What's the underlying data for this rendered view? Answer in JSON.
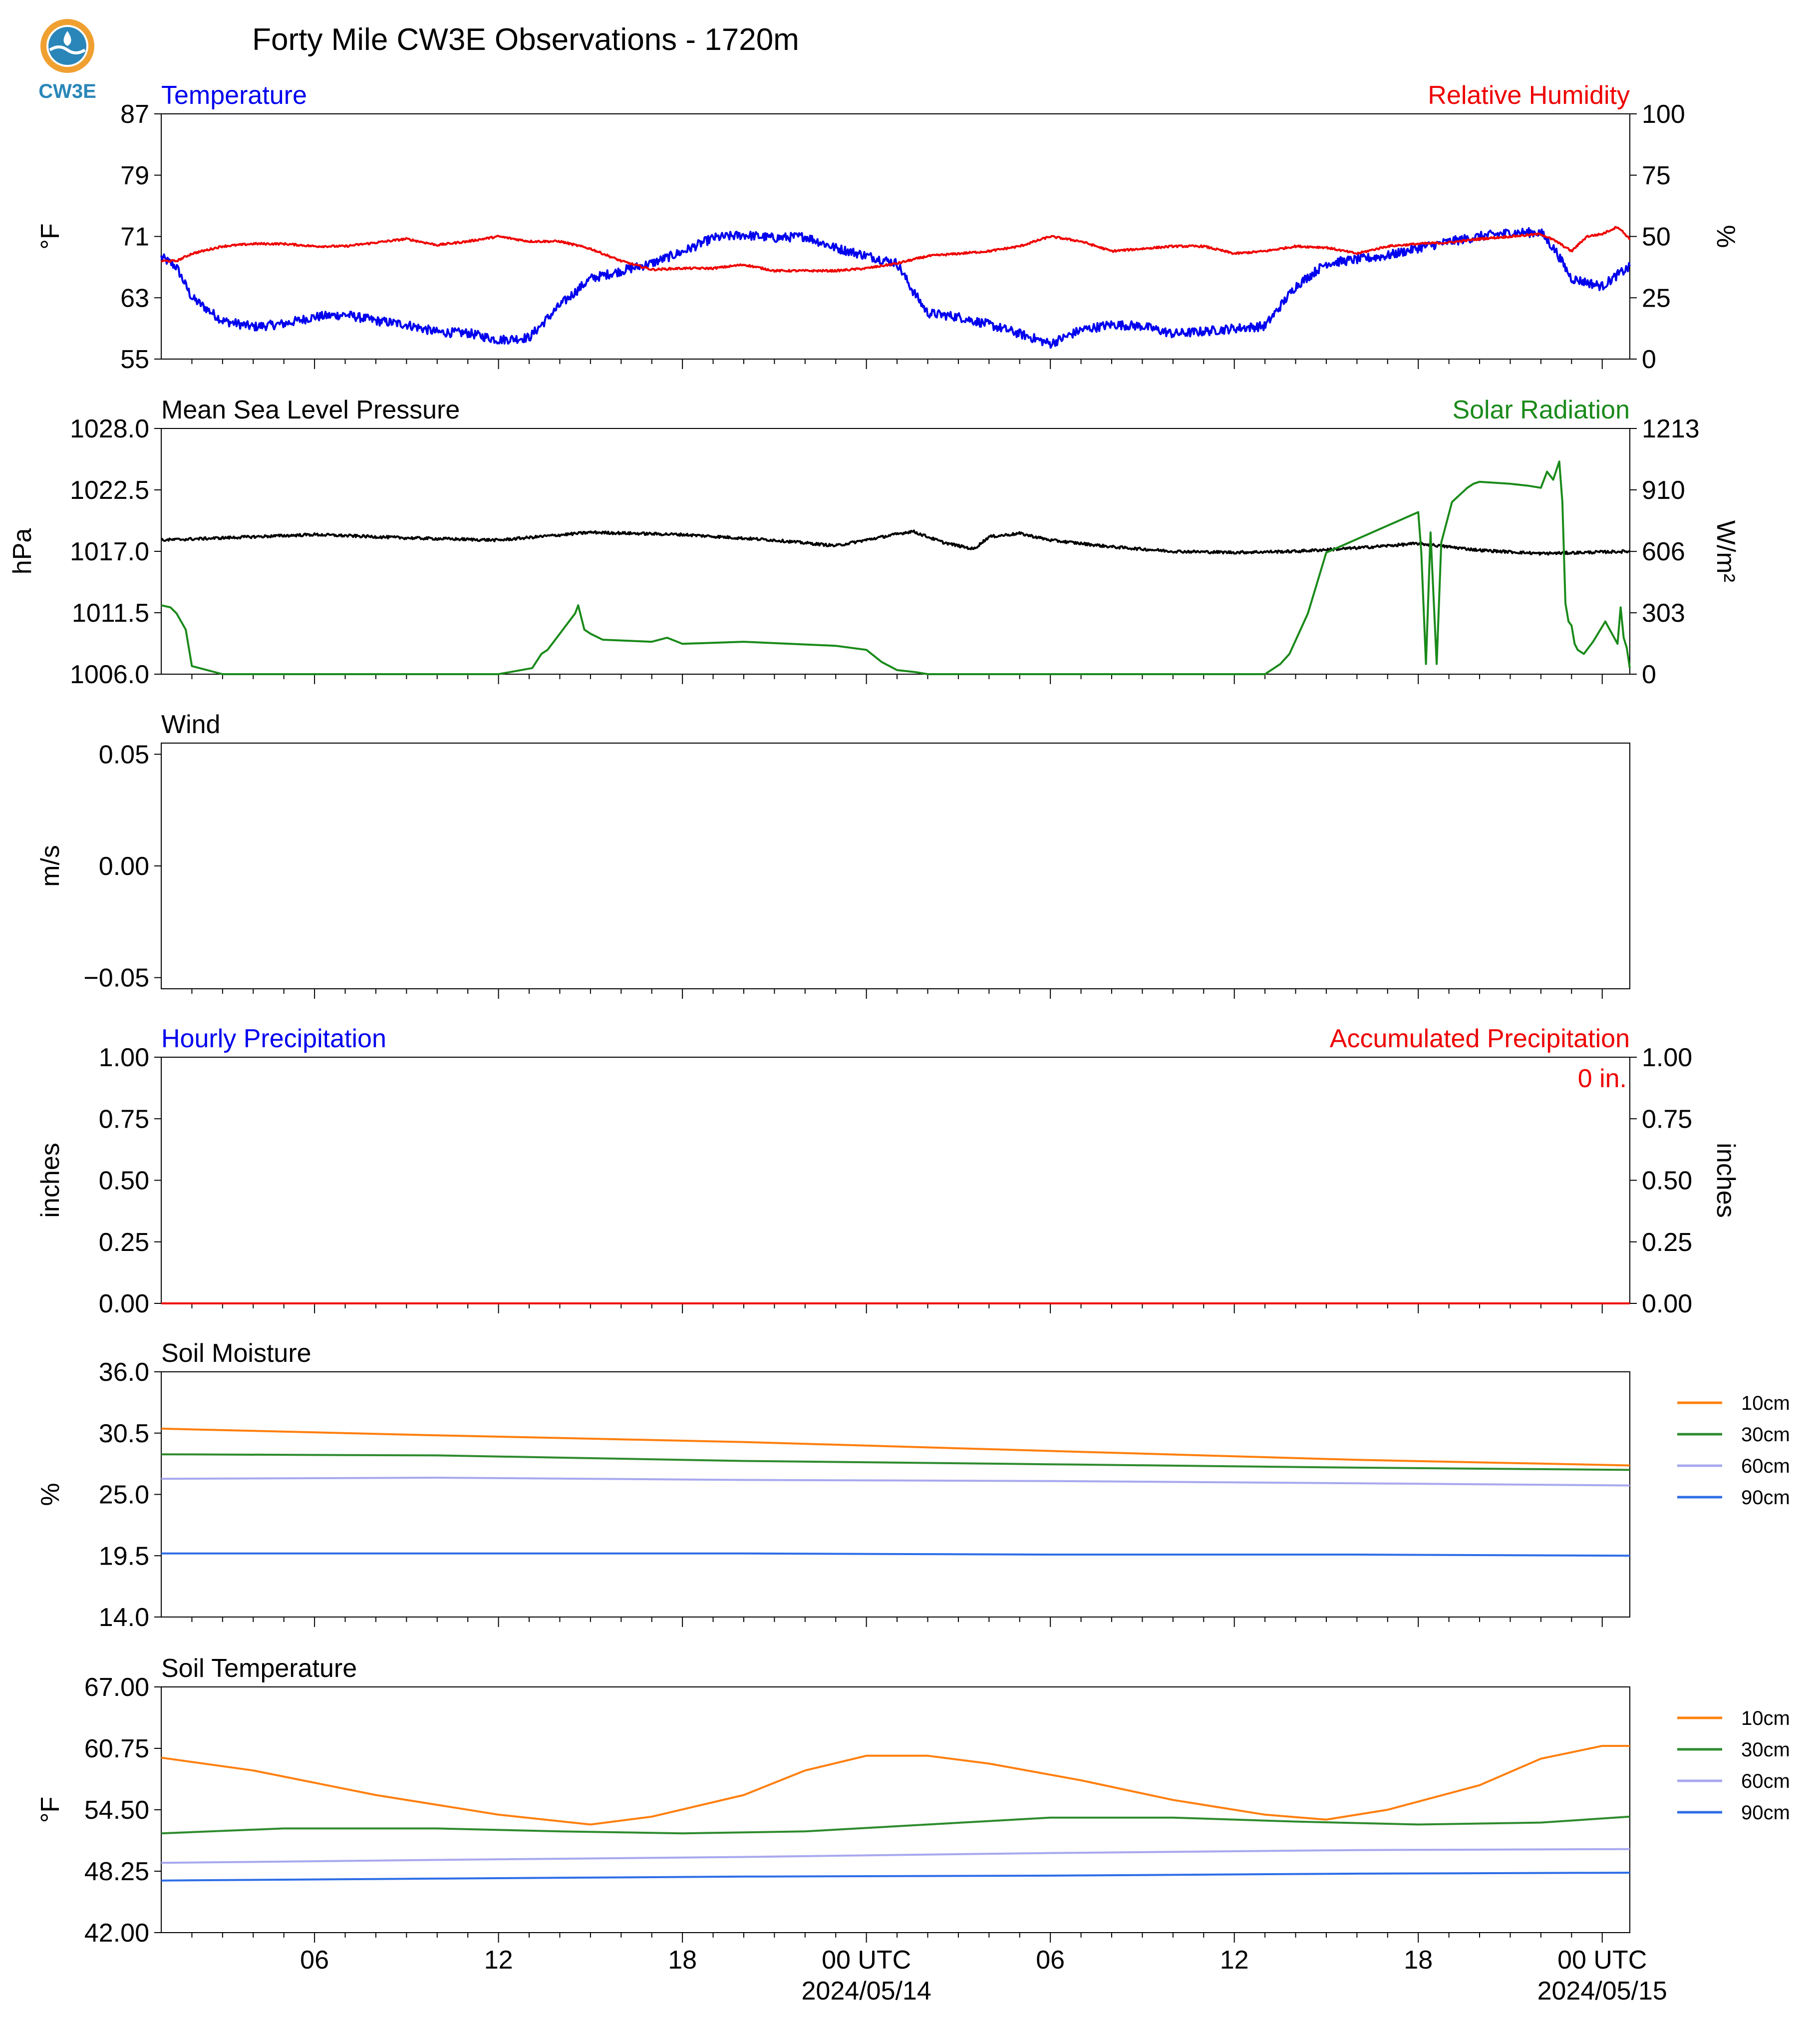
{
  "title": "Forty Mile CW3E Observations - 1720m",
  "logo": {
    "text": "CW3E",
    "color": "#2a86b8",
    "accent": "#f0a030"
  },
  "time_axis": {
    "tick_labels": [
      "06",
      "12",
      "18",
      "00 UTC",
      "06",
      "12",
      "18",
      "00 UTC"
    ],
    "tick_hours": [
      6,
      12,
      18,
      24,
      30,
      36,
      42,
      48
    ],
    "date_labels": [
      "2024/05/14",
      "2024/05/15"
    ],
    "date_hours": [
      24,
      48
    ],
    "range_hours": [
      1,
      48.9
    ]
  },
  "chart_data": [
    {
      "type": "line",
      "title_left": "Temperature",
      "title_right": "Relative Humidity",
      "title_left_color": "#0000ee",
      "title_right_color": "#ee0000",
      "ylabel": "°F",
      "y2label": "%",
      "ylim": [
        55,
        87
      ],
      "yticks": [
        "55",
        "63",
        "71",
        "79",
        "87"
      ],
      "y2lim": [
        0,
        100
      ],
      "y2ticks": [
        "0",
        "25",
        "50",
        "75",
        "100"
      ],
      "series": [
        {
          "axis": "left",
          "color": "#0000ee",
          "noise": 0.6,
          "x": [
            1,
            1.5,
            2,
            3,
            4,
            5,
            6,
            7,
            8,
            9,
            10,
            11,
            12,
            13,
            14,
            15,
            16,
            17,
            18,
            19,
            20,
            21,
            22,
            23,
            24,
            25,
            25.5,
            26,
            27,
            28,
            29,
            30,
            31,
            32,
            33,
            34,
            35,
            36,
            37,
            38,
            39,
            40,
            41,
            42,
            43,
            44,
            45,
            46,
            46.5,
            47,
            47.5,
            48,
            48.5,
            48.9
          ],
          "y": [
            68.3,
            67,
            63,
            60,
            59.2,
            59.6,
            60.5,
            60.8,
            60,
            59.5,
            58.5,
            58.4,
            57.5,
            57.8,
            62,
            65.5,
            66.5,
            67.5,
            69,
            70.8,
            71.2,
            70.8,
            71,
            69.5,
            68.5,
            67.5,
            64,
            61,
            60.5,
            59.5,
            58.3,
            57,
            58.8,
            59.5,
            59.3,
            58.3,
            58.6,
            59,
            59.3,
            64.5,
            67.5,
            68,
            68.5,
            69.5,
            70.3,
            71,
            71.5,
            71.5,
            69,
            65.5,
            65,
            64.5,
            66,
            67
          ]
        },
        {
          "axis": "right",
          "color": "#ee0000",
          "noise": 0.4,
          "x": [
            1,
            1.5,
            2,
            3,
            4,
            5,
            6,
            7,
            8,
            9,
            10,
            11,
            12,
            13,
            14,
            15,
            16,
            17,
            18,
            19,
            20,
            21,
            22,
            23,
            24,
            25,
            26,
            27,
            28,
            29,
            30,
            31,
            32,
            33,
            34,
            35,
            36,
            37,
            38,
            39,
            40,
            41,
            42,
            43,
            44,
            45,
            46,
            46.5,
            47,
            47.5,
            48,
            48.5,
            48.9
          ],
          "y": [
            40,
            40,
            43,
            46,
            47,
            47,
            46,
            46,
            47.5,
            49,
            46.5,
            48,
            50,
            48,
            48,
            45,
            40,
            36.5,
            37,
            37,
            38.5,
            36,
            36,
            36,
            37,
            39,
            42,
            43,
            44,
            46,
            50,
            48,
            44,
            45,
            46,
            46,
            43,
            44,
            46,
            45.5,
            43,
            46,
            47,
            47.5,
            49,
            50,
            51,
            48,
            44,
            50,
            51,
            54,
            49
          ]
        }
      ]
    },
    {
      "type": "line",
      "title_left": "Mean Sea Level Pressure",
      "title_right": "Solar Radiation",
      "title_left_color": "#000000",
      "title_right_color": "#1a8a1a",
      "ylabel": "hPa",
      "y2label": "W/m²",
      "ylim": [
        1006.0,
        1028.0
      ],
      "yticks": [
        "1006.0",
        "1011.5",
        "1017.0",
        "1022.5",
        "1028.0"
      ],
      "y2lim": [
        0,
        1213
      ],
      "y2ticks": [
        "0",
        "303",
        "606",
        "910",
        "1213"
      ],
      "series": [
        {
          "axis": "left",
          "color": "#000000",
          "noise": 0.12,
          "x": [
            1,
            3,
            6,
            9,
            12,
            15,
            18,
            21,
            23,
            25.5,
            26.5,
            27.5,
            28,
            29,
            30,
            32,
            34,
            36,
            38,
            40,
            42,
            44,
            46,
            48.9
          ],
          "y": [
            1018.0,
            1018.2,
            1018.5,
            1018.2,
            1018.0,
            1018.7,
            1018.5,
            1018.0,
            1017.5,
            1018.8,
            1017.8,
            1017.2,
            1018.3,
            1018.6,
            1018.0,
            1017.4,
            1017.0,
            1016.9,
            1017.0,
            1017.3,
            1017.7,
            1017.1,
            1016.8,
            1017.0
          ]
        },
        {
          "axis": "right",
          "color": "#1a8a1a",
          "noise": 0,
          "x": [
            1,
            1.3,
            1.5,
            1.8,
            2,
            3,
            4,
            12,
            13.1,
            13.4,
            13.6,
            14,
            14.3,
            14.5,
            14.6,
            14.8,
            15,
            15.4,
            17,
            17.5,
            18,
            20,
            23,
            24,
            24.5,
            25,
            25.6,
            26,
            37,
            37.5,
            37.8,
            38.4,
            39,
            42,
            42.1,
            42.25,
            42.4,
            42.6,
            42.75,
            43.1,
            43.6,
            43.8,
            44,
            45,
            45.6,
            46,
            46.2,
            46.4,
            46.6,
            46.7,
            46.8,
            46.9,
            47,
            47.1,
            47.2,
            47.4,
            47.7,
            48.1,
            48.5,
            48.6,
            48.7,
            48.8,
            48.9
          ],
          "y": [
            340,
            330,
            300,
            220,
            40,
            0,
            0,
            0,
            30,
            100,
            120,
            200,
            260,
            300,
            340,
            220,
            200,
            170,
            160,
            180,
            150,
            160,
            140,
            120,
            60,
            20,
            10,
            0,
            0,
            50,
            100,
            300,
            600,
            800,
            600,
            50,
            700,
            50,
            650,
            850,
            920,
            940,
            950,
            940,
            930,
            920,
            1000,
            960,
            1050,
            850,
            350,
            260,
            240,
            150,
            120,
            100,
            160,
            260,
            150,
            330,
            180,
            130,
            30
          ]
        }
      ]
    },
    {
      "type": "line",
      "title_left": "Wind",
      "title_right": "",
      "title_left_color": "#000000",
      "ylabel": "m/s",
      "ylim": [
        -0.055,
        0.055
      ],
      "yticks": [
        "−0.05",
        "0.00",
        "0.05"
      ],
      "ytick_values": [
        -0.05,
        0,
        0.05
      ],
      "series": []
    },
    {
      "type": "line",
      "title_left": "Hourly Precipitation",
      "title_right": "Accumulated Precipitation",
      "title_left_color": "#0000ee",
      "title_right_color": "#ee0000",
      "ylabel": "inches",
      "y2label": "inches",
      "ylim": [
        0,
        1
      ],
      "yticks": [
        "0.00",
        "0.25",
        "0.50",
        "0.75",
        "1.00"
      ],
      "y2lim": [
        0,
        1
      ],
      "y2ticks": [
        "0.00",
        "0.25",
        "0.50",
        "0.75",
        "1.00"
      ],
      "annotation": "0 in.",
      "series": [
        {
          "axis": "left",
          "color": "#0000ee",
          "noise": 0,
          "x": [
            1,
            48.9
          ],
          "y": [
            0,
            0
          ]
        },
        {
          "axis": "right",
          "color": "#ee0000",
          "noise": 0,
          "x": [
            1,
            48.9
          ],
          "y": [
            0,
            0
          ]
        }
      ]
    },
    {
      "type": "line",
      "title_left": "Soil Moisture",
      "title_right": "",
      "title_left_color": "#000000",
      "ylabel": "%",
      "ylim": [
        14.0,
        36.0
      ],
      "yticks": [
        "14.0",
        "19.5",
        "25.0",
        "30.5",
        "36.0"
      ],
      "legend": "right",
      "series": [
        {
          "name": "10cm",
          "axis": "left",
          "color": "#ff7f0e",
          "noise": 0,
          "x": [
            1,
            10,
            20,
            30,
            40,
            48.9
          ],
          "y": [
            30.9,
            30.3,
            29.7,
            28.9,
            28.1,
            27.6
          ]
        },
        {
          "name": "30cm",
          "axis": "left",
          "color": "#2e8b2e",
          "noise": 0,
          "x": [
            1,
            10,
            20,
            30,
            40,
            48.9
          ],
          "y": [
            28.6,
            28.5,
            28.0,
            27.7,
            27.4,
            27.2
          ]
        },
        {
          "name": "60cm",
          "axis": "left",
          "color": "#a8a8ef",
          "noise": 0,
          "x": [
            1,
            10,
            20,
            30,
            40,
            48.9
          ],
          "y": [
            26.4,
            26.5,
            26.3,
            26.2,
            26.0,
            25.8
          ]
        },
        {
          "name": "90cm",
          "axis": "left",
          "color": "#2e6ee6",
          "noise": 0,
          "x": [
            1,
            10,
            20,
            30,
            40,
            48.9
          ],
          "y": [
            19.7,
            19.7,
            19.7,
            19.6,
            19.6,
            19.5
          ]
        }
      ]
    },
    {
      "type": "line",
      "title_left": "Soil Temperature",
      "title_right": "",
      "title_left_color": "#000000",
      "ylabel": "°F",
      "ylim": [
        42.0,
        67.0
      ],
      "yticks": [
        "42.00",
        "48.25",
        "54.50",
        "60.75",
        "67.00"
      ],
      "legend": "right",
      "series": [
        {
          "name": "10cm",
          "axis": "left",
          "color": "#ff7f0e",
          "noise": 0,
          "x": [
            1,
            4,
            8,
            12,
            15,
            17,
            20,
            22,
            24,
            26,
            28,
            31,
            34,
            37,
            39,
            41,
            44,
            46,
            48,
            48.9
          ],
          "y": [
            59.8,
            58.5,
            56.0,
            54.0,
            53.0,
            53.8,
            56.0,
            58.5,
            60.0,
            60.0,
            59.2,
            57.5,
            55.5,
            54.0,
            53.5,
            54.5,
            57.0,
            59.7,
            61.0,
            61.0
          ]
        },
        {
          "name": "30cm",
          "axis": "left",
          "color": "#2e8b2e",
          "noise": 0,
          "x": [
            1,
            5,
            10,
            14,
            18,
            22,
            26,
            30,
            34,
            38,
            42,
            46,
            48.9
          ],
          "y": [
            52.1,
            52.6,
            52.6,
            52.3,
            52.1,
            52.3,
            53.0,
            53.7,
            53.7,
            53.3,
            53.0,
            53.2,
            53.8
          ]
        },
        {
          "name": "60cm",
          "axis": "left",
          "color": "#a8a8ef",
          "noise": 0,
          "x": [
            1,
            10,
            20,
            30,
            40,
            48.9
          ],
          "y": [
            49.1,
            49.4,
            49.7,
            50.1,
            50.4,
            50.5
          ]
        },
        {
          "name": "90cm",
          "axis": "left",
          "color": "#2e6ee6",
          "noise": 0,
          "x": [
            1,
            10,
            20,
            30,
            40,
            48.9
          ],
          "y": [
            47.3,
            47.5,
            47.7,
            47.8,
            48.0,
            48.1
          ]
        }
      ]
    }
  ]
}
